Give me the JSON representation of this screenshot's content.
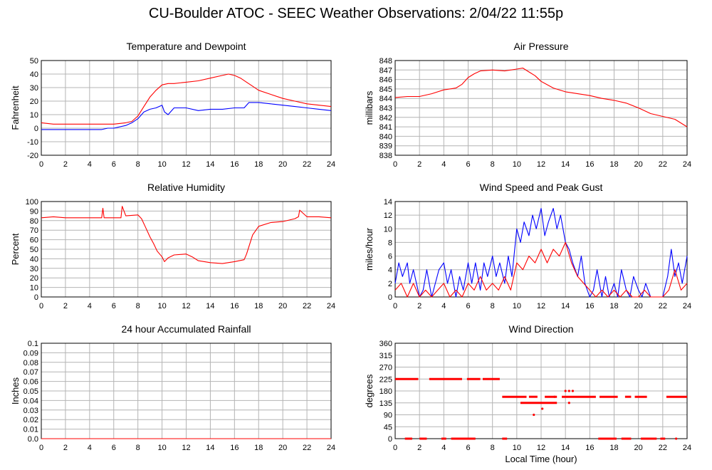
{
  "page_title": "CU-Boulder ATOC - SEEC Weather Observations: 2/04/22 11:55p",
  "chart_data": [
    {
      "type": "line",
      "title": "Temperature and Dewpoint",
      "xlabel": "",
      "ylabel": "Fahrenheit",
      "xlim": [
        0,
        24
      ],
      "ylim": [
        -20,
        50
      ],
      "x_ticks": [
        "0",
        "2",
        "4",
        "6",
        "8",
        "10",
        "12",
        "14",
        "16",
        "18",
        "20",
        "22",
        "24"
      ],
      "y_ticks": [
        "-20",
        "-10",
        "0",
        "10",
        "20",
        "30",
        "40",
        "50"
      ],
      "grid": true,
      "colors": {
        "temperature": "#ff0000",
        "dewpoint": "#0000ff"
      },
      "series": [
        {
          "key": "temperature",
          "color": "#ff0000",
          "x": [
            0,
            1,
            2,
            3,
            4,
            5,
            6,
            7,
            7.5,
            8,
            8.5,
            9,
            9.5,
            10,
            10.5,
            11,
            12,
            13,
            14,
            15,
            15.5,
            16,
            16.5,
            17,
            17.5,
            18,
            19,
            20,
            21,
            22,
            23,
            24
          ],
          "y": [
            4,
            3,
            3,
            3,
            3,
            3,
            3,
            4,
            5,
            9,
            16,
            23,
            28,
            32,
            33,
            33,
            34,
            35,
            37,
            39,
            40,
            39,
            37,
            34,
            31,
            28,
            25,
            22,
            20,
            18,
            17,
            16
          ]
        },
        {
          "key": "dewpoint",
          "color": "#0000ff",
          "x": [
            0,
            1,
            2,
            3,
            4,
            5,
            5.5,
            6,
            7,
            7.5,
            8,
            8.5,
            9,
            9.5,
            10,
            10.2,
            10.5,
            11,
            12,
            13,
            14,
            15,
            16,
            16.8,
            17.2,
            18,
            19,
            20,
            21,
            22,
            23,
            24
          ],
          "y": [
            -1,
            -1,
            -1,
            -1,
            -1,
            -1,
            0,
            0,
            2,
            4,
            7,
            12,
            14,
            15,
            17,
            12,
            10,
            15,
            15,
            13,
            14,
            14,
            15,
            15,
            19,
            19,
            18,
            17,
            16,
            15,
            14,
            13
          ]
        }
      ]
    },
    {
      "type": "line",
      "title": "Air Pressure",
      "xlabel": "",
      "ylabel": "millibars",
      "xlim": [
        0,
        24
      ],
      "ylim": [
        838,
        848
      ],
      "x_ticks": [
        "0",
        "2",
        "4",
        "6",
        "8",
        "10",
        "12",
        "14",
        "16",
        "18",
        "20",
        "22",
        "24"
      ],
      "y_ticks": [
        "838",
        "839",
        "840",
        "841",
        "842",
        "843",
        "844",
        "845",
        "846",
        "847",
        "848"
      ],
      "grid": true,
      "series": [
        {
          "key": "pressure",
          "color": "#ff0000",
          "x": [
            0,
            1,
            2,
            3,
            4,
            5,
            5.5,
            6,
            6.5,
            7,
            8,
            9,
            10,
            10.5,
            11,
            11.5,
            12,
            13,
            14,
            15,
            16,
            17,
            18,
            19,
            20,
            21,
            22,
            23,
            24
          ],
          "y": [
            844.1,
            844.2,
            844.2,
            844.5,
            844.9,
            845.1,
            845.5,
            846.2,
            846.6,
            846.9,
            847.0,
            846.9,
            847.1,
            847.2,
            846.8,
            846.4,
            845.8,
            845.1,
            844.7,
            844.5,
            844.3,
            844.0,
            843.8,
            843.5,
            843.0,
            842.4,
            842.1,
            841.8,
            841.0
          ]
        }
      ]
    },
    {
      "type": "line",
      "title": "Relative Humidity",
      "xlabel": "",
      "ylabel": "Percent",
      "xlim": [
        0,
        24
      ],
      "ylim": [
        0,
        100
      ],
      "x_ticks": [
        "0",
        "2",
        "4",
        "6",
        "8",
        "10",
        "12",
        "14",
        "16",
        "18",
        "20",
        "22",
        "24"
      ],
      "y_ticks": [
        "0",
        "10",
        "20",
        "30",
        "40",
        "50",
        "60",
        "70",
        "80",
        "90",
        "100"
      ],
      "grid": true,
      "series": [
        {
          "key": "humidity",
          "color": "#ff0000",
          "x": [
            0,
            1,
            2,
            3,
            4,
            5,
            5.1,
            5.2,
            6,
            6.6,
            6.7,
            7,
            8,
            8.3,
            8.6,
            9,
            9.3,
            9.6,
            10,
            10.2,
            10.5,
            11,
            12,
            12.5,
            13,
            14,
            15,
            16,
            16.8,
            17,
            17.5,
            18,
            19,
            20,
            21,
            21.3,
            21.4,
            22,
            23,
            24
          ],
          "y": [
            83,
            84,
            83,
            83,
            83,
            83,
            93,
            83,
            83,
            83,
            95,
            85,
            86,
            82,
            74,
            63,
            56,
            48,
            42,
            37,
            41,
            44,
            45,
            42,
            38,
            36,
            35,
            37,
            39,
            45,
            65,
            74,
            78,
            79,
            82,
            84,
            91,
            84,
            84,
            83
          ]
        }
      ]
    },
    {
      "type": "line",
      "title": "Wind Speed and Peak Gust",
      "xlabel": "",
      "ylabel": "miles/hour",
      "xlim": [
        0,
        24
      ],
      "ylim": [
        0,
        14
      ],
      "x_ticks": [
        "0",
        "2",
        "4",
        "6",
        "8",
        "10",
        "12",
        "14",
        "16",
        "18",
        "20",
        "22",
        "24"
      ],
      "y_ticks": [
        "0",
        "2",
        "4",
        "6",
        "8",
        "10",
        "12",
        "14"
      ],
      "grid": true,
      "series": [
        {
          "key": "gust",
          "color": "#0000ff",
          "x": [
            0,
            0.3,
            0.6,
            1,
            1.2,
            1.5,
            2,
            2.3,
            2.6,
            3,
            3.3,
            3.6,
            4,
            4.3,
            4.6,
            5,
            5.3,
            5.6,
            6,
            6.3,
            6.6,
            7,
            7.3,
            7.6,
            8,
            8.3,
            8.6,
            9,
            9.3,
            9.6,
            10,
            10.3,
            10.6,
            11,
            11.3,
            11.6,
            12,
            12.3,
            12.6,
            13,
            13.3,
            13.6,
            14,
            14.3,
            14.6,
            15,
            15.3,
            15.6,
            16,
            16.3,
            16.6,
            17,
            17.3,
            17.6,
            18,
            18.3,
            18.6,
            19,
            19.3,
            19.6,
            20,
            20.3,
            20.6,
            21,
            22,
            22.4,
            22.7,
            23,
            23.3,
            23.6,
            24
          ],
          "y": [
            2,
            5,
            3,
            5,
            2,
            4,
            0,
            1,
            4,
            0,
            2,
            4,
            5,
            2,
            4,
            0,
            3,
            1,
            5,
            2,
            5,
            1,
            5,
            3,
            6,
            3,
            5,
            2,
            6,
            3,
            10,
            8,
            11,
            9,
            12,
            10,
            13,
            9,
            11,
            13,
            10,
            12,
            8,
            7,
            5,
            3,
            6,
            2,
            0,
            1,
            4,
            0,
            3,
            0,
            2,
            0,
            4,
            1,
            0,
            3,
            1,
            0,
            2,
            0,
            0,
            3,
            7,
            3,
            5,
            2,
            6
          ]
        },
        {
          "key": "speed",
          "color": "#ff0000",
          "x": [
            0,
            0.5,
            1,
            1.5,
            2,
            2.5,
            3,
            3.5,
            4,
            4.5,
            5,
            5.5,
            6,
            6.5,
            7,
            7.5,
            8,
            8.5,
            9,
            9.5,
            10,
            10.5,
            11,
            11.5,
            12,
            12.5,
            13,
            13.5,
            14,
            14.5,
            15,
            15.5,
            16,
            16.5,
            17,
            17.5,
            18,
            18.5,
            19,
            19.5,
            20,
            20.5,
            21,
            22,
            22.5,
            23,
            23.5,
            24
          ],
          "y": [
            1,
            2,
            0,
            2,
            0,
            1,
            0,
            1,
            2,
            0,
            1,
            0,
            2,
            1,
            3,
            1,
            2,
            1,
            3,
            1,
            5,
            4,
            6,
            5,
            7,
            5,
            7,
            6,
            8,
            5,
            3,
            2,
            1,
            0,
            1,
            0,
            1,
            0,
            1,
            0,
            0,
            1,
            0,
            0,
            1,
            4,
            1,
            2
          ]
        }
      ]
    },
    {
      "type": "line",
      "title": "24 hour Accumulated Rainfall",
      "xlabel": "",
      "ylabel": "Inches",
      "xlim": [
        0,
        24
      ],
      "ylim": [
        0,
        0.1
      ],
      "x_ticks": [
        "0",
        "2",
        "4",
        "6",
        "8",
        "10",
        "12",
        "14",
        "16",
        "18",
        "20",
        "22",
        "24"
      ],
      "y_ticks": [
        "0.0",
        "0.01",
        "0.02",
        "0.03",
        "0.04",
        "0.05",
        "0.06",
        "0.07",
        "0.08",
        "0.09",
        "0.1"
      ],
      "grid": true,
      "series": [
        {
          "key": "rainfall",
          "color": "#ff0000",
          "x": [
            0,
            24
          ],
          "y": [
            0,
            0
          ]
        }
      ]
    },
    {
      "type": "scatter",
      "title": "Wind Direction",
      "xlabel": "Local Time (hour)",
      "ylabel": "degrees",
      "xlim": [
        0,
        24
      ],
      "ylim": [
        0,
        360
      ],
      "x_ticks": [
        "0",
        "2",
        "4",
        "6",
        "8",
        "10",
        "12",
        "14",
        "16",
        "18",
        "20",
        "22",
        "24"
      ],
      "y_ticks": [
        "0",
        "45",
        "90",
        "135",
        "180",
        "225",
        "270",
        "315",
        "360"
      ],
      "grid": true,
      "series": [
        {
          "key": "direction",
          "color": "#ff0000",
          "runs": [
            [
              0,
              1.9,
              225
            ],
            [
              2.8,
              5.5,
              225
            ],
            [
              5.9,
              7,
              225
            ],
            [
              7.2,
              8.6,
              225
            ],
            [
              8.8,
              10.8,
              158
            ],
            [
              11,
              11.7,
              158
            ],
            [
              12.3,
              13.3,
              158
            ],
            [
              13.7,
              16.5,
              158
            ],
            [
              16.8,
              18.3,
              158
            ],
            [
              18.9,
              19.4,
              158
            ],
            [
              19.7,
              20.7,
              158
            ],
            [
              22.3,
              24,
              158
            ],
            [
              10.3,
              13.3,
              135
            ],
            [
              0.8,
              1.4,
              0
            ],
            [
              2,
              2.6,
              0
            ],
            [
              3.8,
              4.2,
              0
            ],
            [
              4.6,
              6.6,
              0
            ],
            [
              8.8,
              9.2,
              0
            ],
            [
              16.7,
              18.2,
              0
            ],
            [
              18.6,
              19.4,
              0
            ],
            [
              20.2,
              21.5,
              0
            ],
            [
              21.8,
              22.2,
              0
            ]
          ],
          "points": [
            [
              14,
              180
            ],
            [
              14.3,
              180
            ],
            [
              14.6,
              180
            ],
            [
              11.4,
              90
            ],
            [
              12.1,
              113
            ],
            [
              14.3,
              135
            ],
            [
              13.1,
              158
            ],
            [
              23.1,
              0
            ]
          ]
        }
      ]
    }
  ]
}
